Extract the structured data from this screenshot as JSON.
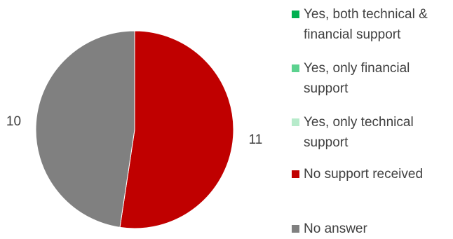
{
  "chart_data": {
    "type": "pie",
    "title": "",
    "series": [
      {
        "name": "Yes, both technical & financial support",
        "value": 0,
        "color": "#00B050"
      },
      {
        "name": "Yes, only financial support",
        "value": 0,
        "color": "#5CD28F"
      },
      {
        "name": "Yes, only technical support",
        "value": 0,
        "color": "#B7EBCB"
      },
      {
        "name": "No support received",
        "value": 11,
        "color": "#C00000"
      },
      {
        "name": "No answer",
        "value": 10,
        "color": "#808080"
      }
    ],
    "data_labels": [
      "",
      "",
      "",
      "11",
      "10"
    ],
    "legend_position": "right"
  }
}
